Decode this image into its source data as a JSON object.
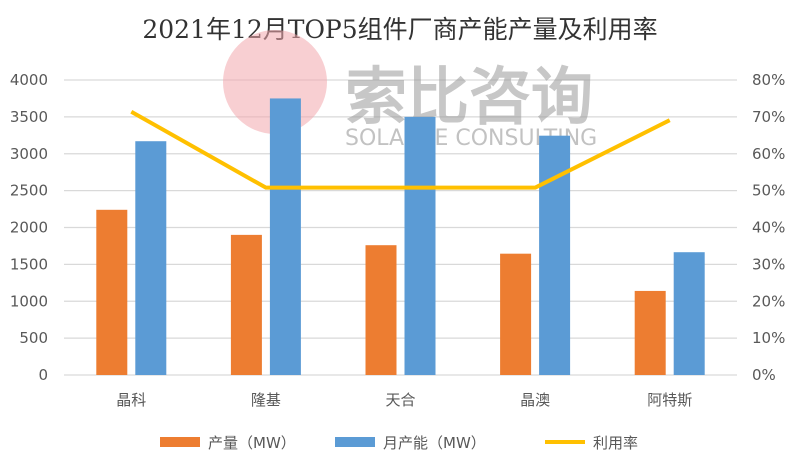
{
  "chart_data": {
    "type": "bar",
    "title": "2021年12月TOP5组件厂商产能产量及利用率",
    "categories": [
      "晶科",
      "隆基",
      "天合",
      "晶澳",
      "阿特斯"
    ],
    "series": [
      {
        "name": "产量（MW）",
        "type": "bar",
        "axis": "left",
        "color": "#ED7D31",
        "values": [
          2240,
          1900,
          1760,
          1645,
          1140
        ]
      },
      {
        "name": "月产能（MW）",
        "type": "bar",
        "axis": "left",
        "color": "#5B9BD5",
        "values": [
          3170,
          3750,
          3500,
          3245,
          1665
        ]
      },
      {
        "name": "利用率",
        "type": "line",
        "axis": "right",
        "color": "#FFC000",
        "values": [
          71.4,
          50.8,
          50.8,
          50.8,
          69.1
        ]
      }
    ],
    "ylim": [
      0,
      4000
    ],
    "yticks": [
      "0",
      "500",
      "1000",
      "1500",
      "2000",
      "2500",
      "3000",
      "3500",
      "4000"
    ],
    "y2lim": [
      0,
      80
    ],
    "y2ticks": [
      "0%",
      "10%",
      "20%",
      "30%",
      "40%",
      "50%",
      "60%",
      "70%",
      "80%"
    ],
    "grid": true,
    "legend": "bottom"
  },
  "watermark": {
    "cn": "索比咨询",
    "en": "SOLARBE CONSULTING"
  }
}
